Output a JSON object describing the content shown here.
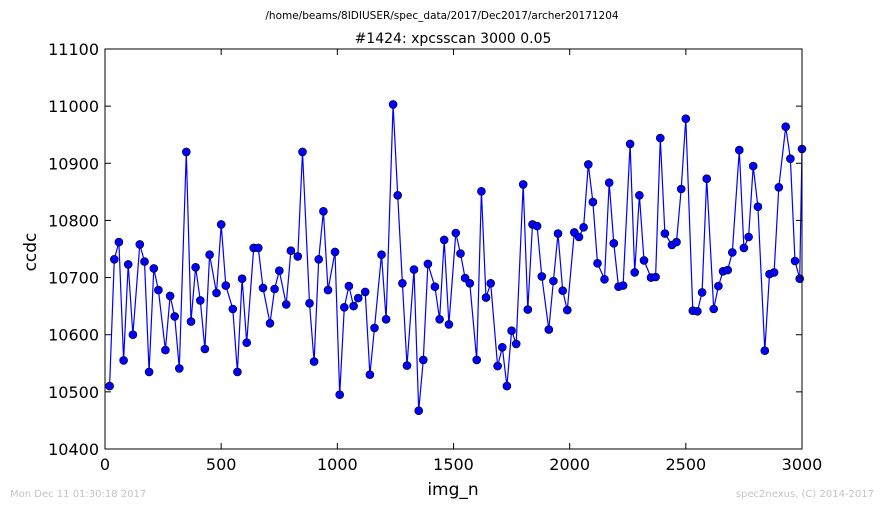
{
  "page": {
    "path_label": "/home/beams/8IDIUSER/spec_data/2017/Dec2017/archer20171204",
    "timestamp": "Mon Dec 11 01:30:18 2017",
    "credit": "spec2nexus, (C) 2014-2017"
  },
  "colors": {
    "series": "#0000ff",
    "axis": "#000000",
    "footer": "#c4c4c4"
  },
  "chart_data": {
    "type": "line",
    "title": "#1424: xpcsscan 3000 0.05",
    "xlabel": "img_n",
    "ylabel": "ccdc",
    "xlim": [
      0,
      3000
    ],
    "ylim": [
      10400,
      11100
    ],
    "xticks": [
      0,
      500,
      1000,
      1500,
      2000,
      2500,
      3000
    ],
    "xtick_labels": [
      "0",
      "500",
      "1000",
      "1500",
      "2000",
      "2500",
      "3000"
    ],
    "yticks": [
      10400,
      10500,
      10600,
      10700,
      10800,
      10900,
      11000,
      11100
    ],
    "ytick_labels": [
      "10400",
      "10500",
      "10600",
      "10700",
      "10800",
      "10900",
      "11000",
      "11100"
    ],
    "grid": false,
    "markers": true,
    "series": [
      {
        "x": [
          20,
          40,
          60,
          80,
          100,
          120,
          150,
          170,
          190,
          210,
          230,
          260,
          280,
          300,
          320,
          350,
          370,
          390,
          410,
          430,
          450,
          480,
          500,
          520,
          550,
          570,
          590,
          610,
          640,
          660,
          680,
          710,
          730,
          750,
          780,
          800,
          830,
          850,
          880,
          900,
          920,
          940,
          960,
          990,
          1010,
          1030,
          1050,
          1070,
          1090,
          1120,
          1140,
          1160,
          1190,
          1210,
          1240,
          1260,
          1280,
          1300,
          1330,
          1350,
          1370,
          1390,
          1420,
          1440,
          1460,
          1480,
          1510,
          1530,
          1550,
          1570,
          1600,
          1620,
          1640,
          1660,
          1690,
          1710,
          1730,
          1750,
          1770,
          1800,
          1820,
          1840,
          1860,
          1880,
          1910,
          1930,
          1950,
          1970,
          1990,
          2020,
          2040,
          2060,
          2080,
          2100,
          2120,
          2150,
          2170,
          2190,
          2210,
          2230,
          2260,
          2280,
          2300,
          2320,
          2350,
          2370,
          2390,
          2410,
          2440,
          2460,
          2480,
          2500,
          2530,
          2550,
          2570,
          2590,
          2620,
          2640,
          2660,
          2680,
          2700,
          2730,
          2750,
          2770,
          2790,
          2810,
          2840,
          2860,
          2880,
          2900,
          2930,
          2950,
          2970,
          2990,
          3000
        ],
        "y": [
          10510,
          10732,
          10762,
          10555,
          10723,
          10600,
          10758,
          10728,
          10535,
          10716,
          10678,
          10573,
          10668,
          10632,
          10541,
          10920,
          10623,
          10718,
          10660,
          10575,
          10740,
          10673,
          10793,
          10686,
          10645,
          10535,
          10698,
          10586,
          10752,
          10752,
          10682,
          10620,
          10680,
          10712,
          10653,
          10747,
          10737,
          10920,
          10655,
          10553,
          10732,
          10816,
          10678,
          10745,
          10495,
          10648,
          10685,
          10650,
          10664,
          10675,
          10530,
          10612,
          10740,
          10627,
          11003,
          10844,
          10690,
          10546,
          10714,
          10467,
          10556,
          10724,
          10684,
          10627,
          10766,
          10618,
          10778,
          10742,
          10699,
          10690,
          10556,
          10851,
          10665,
          10690,
          10545,
          10578,
          10510,
          10607,
          10584,
          10863,
          10644,
          10793,
          10790,
          10702,
          10609,
          10694,
          10777,
          10677,
          10643,
          10779,
          10771,
          10788,
          10898,
          10832,
          10725,
          10697,
          10866,
          10760,
          10684,
          10686,
          10934,
          10709,
          10844,
          10730,
          10700,
          10701,
          10944,
          10777,
          10757,
          10762,
          10855,
          10978,
          10642,
          10641,
          10674,
          10873,
          10645,
          10685,
          10711,
          10713,
          10744,
          10923,
          10752,
          10771,
          10895,
          10824,
          10572,
          10706,
          10709,
          10858,
          10964,
          10908,
          10729,
          10698,
          10925
        ]
      }
    ]
  }
}
